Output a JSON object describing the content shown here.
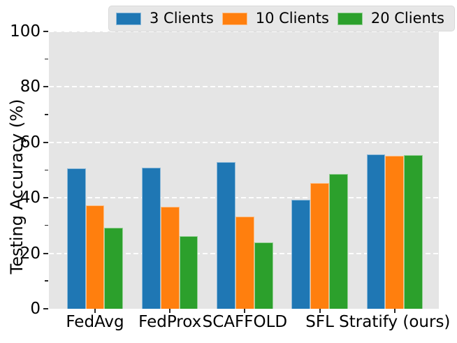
{
  "chart_data": {
    "type": "bar",
    "title": "",
    "xlabel": "",
    "ylabel": "Testing Accuracy (%)",
    "categories": [
      "FedAvg",
      "FedProx",
      "SCAFFOLD",
      "SFL",
      "Stratify (ours)"
    ],
    "series": [
      {
        "name": "3 Clients",
        "color": "#1f77b4",
        "values": [
          50.7,
          50.9,
          52.9,
          39.3,
          55.7
        ]
      },
      {
        "name": "10 Clients",
        "color": "#ff7f0e",
        "values": [
          37.3,
          36.8,
          33.3,
          45.3,
          55.2
        ]
      },
      {
        "name": "20 Clients",
        "color": "#2ca02c",
        "values": [
          29.2,
          26.2,
          23.9,
          48.6,
          55.4
        ]
      }
    ],
    "ylim": [
      0,
      100
    ],
    "yticks": [
      0,
      20,
      40,
      60,
      80,
      100
    ],
    "yticks_minor": [
      10,
      30,
      50,
      70,
      90
    ],
    "grid": "horizontal-white-dashed",
    "legend_position": "top",
    "plot_bg_color": "#e5e5e5"
  }
}
